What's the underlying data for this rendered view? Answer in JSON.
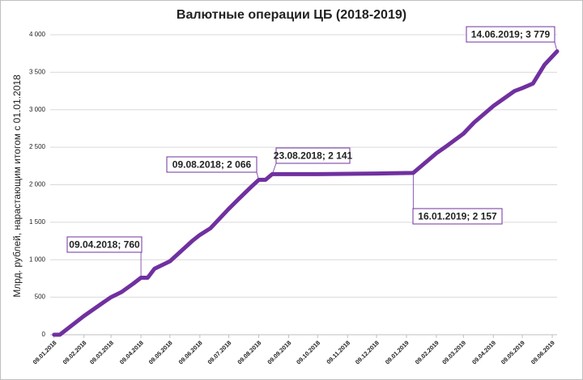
{
  "chart_data": {
    "type": "line",
    "title": "Валютные операции ЦБ (2018-2019)",
    "y_label": "Млрд. рублей, нарастающим итогом с 01.01.2018",
    "x": [
      "09.01.2018",
      "15.01.2018",
      "01.02.2018",
      "09.02.2018",
      "01.03.2018",
      "09.03.2018",
      "20.03.2018",
      "01.04.2018",
      "09.04.2018",
      "16.04.2018",
      "23.04.2018",
      "09.05.2018",
      "01.06.2018",
      "09.06.2018",
      "20.06.2018",
      "09.07.2018",
      "20.07.2018",
      "01.08.2018",
      "09.08.2018",
      "16.08.2018",
      "23.08.2018",
      "09.10.2018",
      "09.12.2018",
      "16.01.2019",
      "09.02.2019",
      "20.02.2019",
      "09.03.2019",
      "20.03.2019",
      "09.04.2019",
      "20.04.2019",
      "01.05.2019",
      "09.05.2019",
      "20.05.2019",
      "01.06.2019",
      "14.06.2019"
    ],
    "series": [
      {
        "name": "Валютные операции ЦБ",
        "color": "#7030a0",
        "values": [
          0,
          0,
          170,
          250,
          430,
          500,
          570,
          680,
          760,
          760,
          880,
          980,
          1250,
          1330,
          1420,
          1680,
          1820,
          1970,
          2066,
          2066,
          2141,
          2141,
          2150,
          2157,
          2420,
          2520,
          2680,
          2830,
          3050,
          3150,
          3250,
          3290,
          3350,
          3600,
          3779
        ]
      }
    ],
    "xlim": [
      "05.01.2018",
      "14.06.2019"
    ],
    "xticks": [
      "09.01.2018",
      "09.02.2018",
      "09.03.2018",
      "09.04.2018",
      "09.05.2018",
      "09.06.2018",
      "09.07.2018",
      "09.08.2018",
      "09.09.2018",
      "09.10.2018",
      "09.11.2018",
      "09.12.2018",
      "09.01.2019",
      "09.02.2019",
      "09.03.2019",
      "09.04.2019",
      "09.05.2019",
      "09.06.2019"
    ],
    "ylim": [
      0,
      4000
    ],
    "yticks": [
      0,
      500,
      {
        "value": 1000,
        "label": "1 000"
      },
      {
        "value": 1500,
        "label": "1 500"
      },
      {
        "value": 2000,
        "label": "2 000"
      },
      {
        "value": 2500,
        "label": "2 500"
      },
      {
        "value": 3000,
        "label": "3 000"
      },
      {
        "value": 3500,
        "label": "3 500"
      },
      {
        "value": 4000,
        "label": "4 000"
      }
    ],
    "grid": true,
    "annotations": [
      {
        "text": "09.04.2018; 760",
        "x": "09.04.2018",
        "y": 760
      },
      {
        "text": "09.08.2018; 2 066",
        "x": "09.08.2018",
        "y": 2066
      },
      {
        "text": "23.08.2018; 2 141",
        "x": "23.08.2018",
        "y": 2141
      },
      {
        "text": "16.01.2019; 2 157",
        "x": "16.01.2019",
        "y": 2157
      },
      {
        "text": "14.06.2019; 3 779",
        "x": "14.06.2019",
        "y": 3779
      }
    ]
  }
}
